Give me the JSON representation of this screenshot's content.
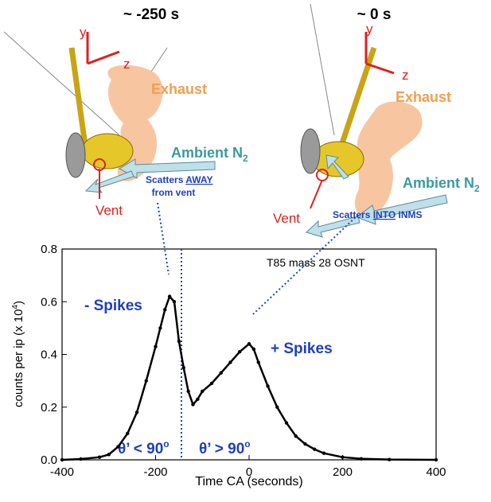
{
  "panels": [
    {
      "time": "~ -250 s",
      "axis_y": "y",
      "axis_z": "z",
      "exhaust": "Exhaust",
      "ambient": "Ambient N",
      "ambient_sub": "2",
      "scatter_pre": "Scatters ",
      "scatter_emph": "AWAY",
      "scatter_post": "from vent",
      "vent": "Vent"
    },
    {
      "time": "~ 0 s",
      "axis_y": "y",
      "axis_z": "z",
      "exhaust": "Exhaust",
      "ambient": "Ambient N",
      "ambient_sub": "2",
      "scatter_pre": "Scatters ",
      "scatter_emph": "INTO",
      "scatter_post": " INMS",
      "vent": "Vent"
    }
  ],
  "chart_data": {
    "type": "line",
    "x_label": "Time CA (seconds)",
    "y_label": {
      "text": "counts per ip (x 10",
      "sup": "4",
      "end": ")"
    },
    "annotations": [
      "T85 mass 28 OSNT",
      "- Spikes",
      "+ Spikes",
      {
        "text": "θ’ < 90",
        "sup": "o"
      },
      {
        "text": "θ’ > 90",
        "sup": "o"
      }
    ],
    "x": [
      -400,
      -360,
      -320,
      -300,
      -280,
      -260,
      -240,
      -220,
      -200,
      -190,
      -180,
      -170,
      -160,
      -150,
      -140,
      -130,
      -120,
      -110,
      -100,
      -80,
      -60,
      -40,
      -20,
      0,
      10,
      20,
      40,
      60,
      80,
      100,
      120,
      140,
      160,
      200,
      240,
      300,
      400
    ],
    "series": [
      {
        "name": "T85 mass 28 OSNT",
        "color": "#000000",
        "values": [
          0,
          0.003,
          0.01,
          0.02,
          0.05,
          0.1,
          0.18,
          0.3,
          0.43,
          0.5,
          0.57,
          0.62,
          0.6,
          0.45,
          0.35,
          0.26,
          0.21,
          0.23,
          0.26,
          0.29,
          0.33,
          0.37,
          0.41,
          0.44,
          0.42,
          0.37,
          0.28,
          0.2,
          0.14,
          0.09,
          0.06,
          0.04,
          0.025,
          0.01,
          0.004,
          0.001,
          0
        ]
      }
    ],
    "xlim": [
      -400,
      400
    ],
    "xticks": [
      -400,
      -200,
      0,
      200,
      400
    ],
    "ylim": [
      0,
      0.8
    ],
    "yticks": [
      {
        "value": 0,
        "label": "0.0"
      },
      0.2,
      0.4,
      0.6,
      0.8
    ]
  }
}
